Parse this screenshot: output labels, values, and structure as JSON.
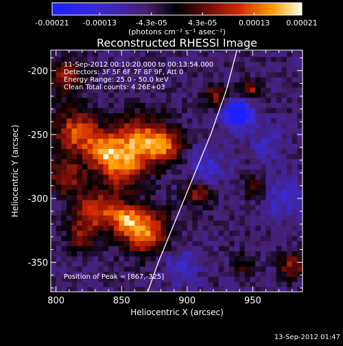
{
  "chart_data": {
    "type": "heatmap",
    "title": "Reconstructed RHESSI Image",
    "xlabel": "Heliocentric X (arcsec)",
    "ylabel": "Heliocentric Y (arcsec)",
    "xlim": [
      796,
      988
    ],
    "ylim": [
      -373,
      -184
    ],
    "xticks": [
      800,
      850,
      900,
      950
    ],
    "yticks": [
      -200,
      -250,
      -300,
      -350
    ],
    "colorbar": {
      "min": -0.00021,
      "max": 0.00021,
      "ticks": [
        "-0.00021",
        "-0.00013",
        "-4.3e-05",
        "4.3e-05",
        "0.00013",
        "0.00021"
      ],
      "tick_values": [
        -0.00021,
        -0.00013,
        -4.3e-05,
        4.3e-05,
        0.00013,
        0.00021
      ],
      "unit_label": "(photons cm⁻² s⁻¹ asec⁻²)"
    },
    "annotations": [
      "11-Sep-2012 00:10:20.000 to 00:13:54.000",
      "Detectors: 3F 5F 6F 7F 8F 9F, Att 0",
      "Energy Range: 25.0 - 50.0 keV",
      "Clean    Total counts: 4.26E+03"
    ],
    "peak_label": "Position of Peak = [867,-325]",
    "peak": [
      867,
      -325
    ],
    "limb_curve": [
      [
        938,
        -184
      ],
      [
        930,
        -215
      ],
      [
        918,
        -250
      ],
      [
        902,
        -290
      ],
      [
        892,
        -315
      ],
      [
        878,
        -350
      ],
      [
        870,
        -373
      ]
    ],
    "emission_sources": [
      {
        "x": 808,
        "y": -205,
        "amp": 0.00012,
        "r": 10
      },
      {
        "x": 816,
        "y": -248,
        "amp": 0.00017,
        "r": 12
      },
      {
        "x": 835,
        "y": -263,
        "amp": 0.00015,
        "r": 9
      },
      {
        "x": 860,
        "y": -255,
        "amp": 0.00018,
        "r": 14
      },
      {
        "x": 882,
        "y": -258,
        "amp": 0.00016,
        "r": 10
      },
      {
        "x": 850,
        "y": -278,
        "amp": 0.00014,
        "r": 12
      },
      {
        "x": 808,
        "y": -283,
        "amp": 0.00013,
        "r": 10
      },
      {
        "x": 830,
        "y": -310,
        "amp": 0.00016,
        "r": 11
      },
      {
        "x": 867,
        "y": -325,
        "amp": 0.00021,
        "r": 12
      },
      {
        "x": 852,
        "y": -315,
        "amp": 0.00013,
        "r": 8
      },
      {
        "x": 818,
        "y": -330,
        "amp": 0.0001,
        "r": 8
      },
      {
        "x": 922,
        "y": -220,
        "amp": 0.00011,
        "r": 7
      },
      {
        "x": 948,
        "y": -215,
        "amp": 0.00012,
        "r": 6
      },
      {
        "x": 908,
        "y": -296,
        "amp": 0.00012,
        "r": 7
      },
      {
        "x": 952,
        "y": -292,
        "amp": 0.0001,
        "r": 6
      },
      {
        "x": 980,
        "y": -353,
        "amp": 0.00012,
        "r": 7
      },
      {
        "x": 943,
        "y": -352,
        "amp": 8e-05,
        "r": 6
      }
    ],
    "negative_sources": [
      {
        "x": 938,
        "y": -233,
        "amp": -0.00021,
        "r": 8
      },
      {
        "x": 915,
        "y": -275,
        "amp": -8e-05,
        "r": 10
      },
      {
        "x": 975,
        "y": -300,
        "amp": -7e-05,
        "r": 12
      },
      {
        "x": 895,
        "y": -352,
        "amp": -6e-05,
        "r": 10
      },
      {
        "x": 960,
        "y": -255,
        "amp": -6e-05,
        "r": 10
      }
    ]
  },
  "footer": {
    "date_stamp": "13-Sep-2012 01:47"
  }
}
